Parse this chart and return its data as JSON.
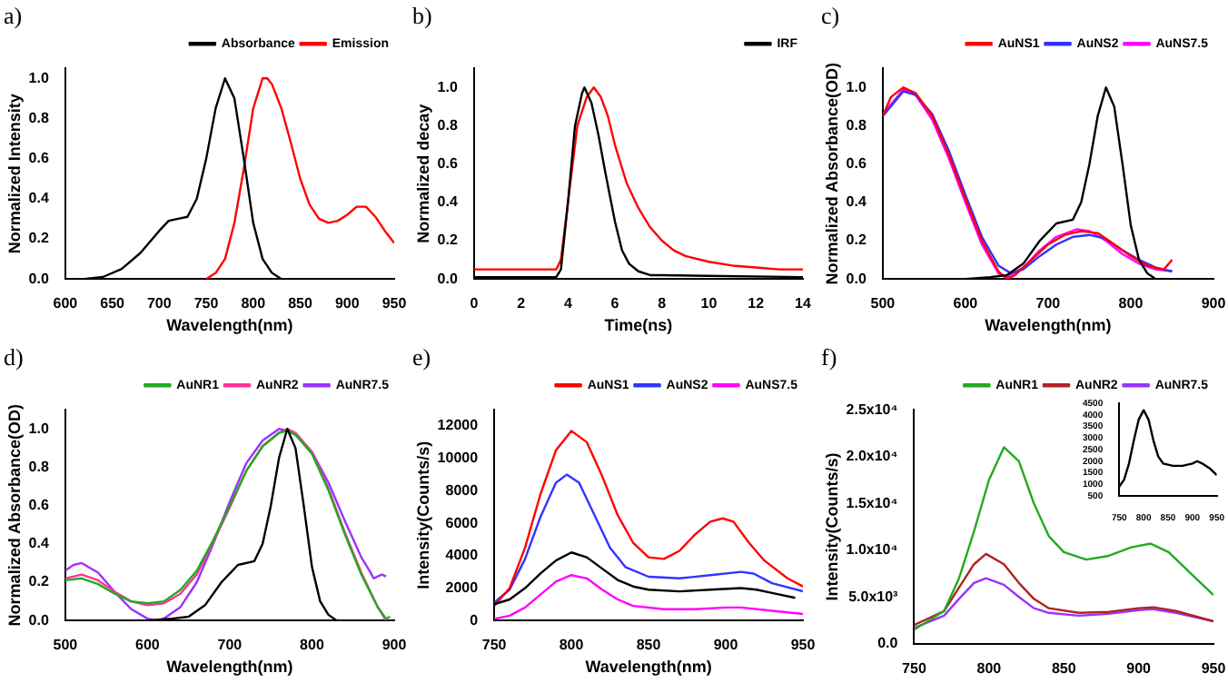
{
  "chart_data": [
    {
      "type": "line",
      "title": "a)",
      "xlabel": "Wavelength(nm)",
      "ylabel": "Normalized Intensity",
      "xlim": [
        600,
        950
      ],
      "xticks": [
        600,
        650,
        700,
        750,
        800,
        850,
        900,
        950
      ],
      "ylim": [
        0,
        1.05
      ],
      "yticks": [
        {
          "value": 0,
          "label": "0.0"
        },
        0.2,
        0.4,
        0.6,
        0.8,
        {
          "value": 1,
          "label": "1.0"
        }
      ],
      "legend": "top right",
      "series": [
        {
          "name": "Absorbance",
          "color": "#000000",
          "x": [
            620,
            640,
            660,
            680,
            700,
            710,
            720,
            730,
            740,
            750,
            760,
            770,
            780,
            790,
            800,
            810,
            820,
            830
          ],
          "values": [
            0,
            0.01,
            0.05,
            0.13,
            0.24,
            0.29,
            0.3,
            0.31,
            0.4,
            0.6,
            0.85,
            1.0,
            0.9,
            0.6,
            0.28,
            0.1,
            0.03,
            0
          ]
        },
        {
          "name": "Emission",
          "color": "#ff0000",
          "x": [
            750,
            760,
            770,
            780,
            790,
            800,
            810,
            815,
            820,
            830,
            840,
            850,
            860,
            870,
            880,
            890,
            900,
            910,
            920,
            930,
            940,
            950
          ],
          "values": [
            0,
            0.03,
            0.1,
            0.28,
            0.55,
            0.85,
            1.0,
            1.0,
            0.97,
            0.85,
            0.68,
            0.5,
            0.37,
            0.3,
            0.28,
            0.29,
            0.32,
            0.36,
            0.36,
            0.31,
            0.24,
            0.18
          ]
        }
      ]
    },
    {
      "type": "line",
      "title": "b)",
      "xlabel": "Time(ns)",
      "ylabel": "Normalized decay",
      "xlim": [
        0,
        14
      ],
      "xticks": [
        0,
        2,
        4,
        6,
        8,
        10,
        12,
        14
      ],
      "ylim": [
        0,
        1.1
      ],
      "yticks": [
        {
          "value": 0,
          "label": "0.0"
        },
        0.2,
        0.4,
        0.6,
        0.8,
        {
          "value": 1,
          "label": "1.0"
        }
      ],
      "legend": "top right",
      "series": [
        {
          "name": "IRF",
          "color": "#000000",
          "x": [
            0,
            3.5,
            3.7,
            4.0,
            4.3,
            4.6,
            4.7,
            5.0,
            5.3,
            5.6,
            6.0,
            6.3,
            6.6,
            7,
            7.5,
            8,
            14
          ],
          "values": [
            0.01,
            0.01,
            0.05,
            0.4,
            0.8,
            0.97,
            1.0,
            0.92,
            0.75,
            0.55,
            0.3,
            0.15,
            0.08,
            0.04,
            0.02,
            0.02,
            0.01
          ]
        },
        {
          "color": "#ff0000",
          "x": [
            0,
            3.5,
            3.7,
            4.0,
            4.4,
            4.8,
            5.1,
            5.4,
            5.7,
            6.0,
            6.5,
            7,
            7.5,
            8,
            8.5,
            9,
            10,
            11,
            12,
            13,
            14
          ],
          "values": [
            0.05,
            0.05,
            0.1,
            0.4,
            0.8,
            0.95,
            1.0,
            0.95,
            0.85,
            0.7,
            0.5,
            0.37,
            0.27,
            0.2,
            0.15,
            0.12,
            0.09,
            0.07,
            0.06,
            0.05,
            0.05
          ]
        }
      ]
    },
    {
      "type": "line",
      "title": "c)",
      "xlabel": "Wavelength(nm)",
      "ylabel": "Normalized Absorbance(OD)",
      "xlim": [
        500,
        900
      ],
      "xticks": [
        500,
        600,
        700,
        800,
        900
      ],
      "ylim": [
        0,
        1.1
      ],
      "yticks": [
        {
          "value": 0,
          "label": "0.0"
        },
        0.2,
        0.4,
        0.6,
        0.8,
        {
          "value": 1,
          "label": "1.0"
        }
      ],
      "legend": "top right",
      "series": [
        {
          "color": "#000000",
          "x": [
            600,
            630,
            650,
            670,
            690,
            710,
            730,
            740,
            750,
            760,
            770,
            780,
            790,
            800,
            810,
            820,
            830
          ],
          "values": [
            0,
            0.01,
            0.02,
            0.08,
            0.2,
            0.29,
            0.31,
            0.4,
            0.6,
            0.85,
            1.0,
            0.9,
            0.6,
            0.28,
            0.1,
            0.03,
            0
          ]
        },
        {
          "name": "AuNS1",
          "color": "#ff0000",
          "x": [
            500,
            510,
            525,
            540,
            560,
            580,
            600,
            620,
            640,
            650,
            660,
            680,
            700,
            720,
            740,
            760,
            780,
            800,
            820,
            840,
            850
          ],
          "values": [
            0.85,
            0.95,
            1.0,
            0.97,
            0.85,
            0.65,
            0.42,
            0.2,
            0.04,
            0,
            0.02,
            0.1,
            0.18,
            0.23,
            0.25,
            0.24,
            0.18,
            0.12,
            0.07,
            0.05,
            0.1
          ]
        },
        {
          "name": "AuNS2",
          "color": "#3333ff",
          "x": [
            500,
            525,
            540,
            560,
            580,
            600,
            620,
            640,
            655,
            670,
            690,
            710,
            730,
            750,
            770,
            790,
            810,
            830,
            850
          ],
          "values": [
            0.85,
            0.98,
            0.96,
            0.86,
            0.67,
            0.44,
            0.22,
            0.07,
            0.03,
            0.05,
            0.12,
            0.18,
            0.22,
            0.23,
            0.21,
            0.15,
            0.1,
            0.06,
            0.04
          ]
        },
        {
          "name": "AuNS7.5",
          "color": "#ff00ff",
          "x": [
            500,
            525,
            540,
            560,
            580,
            600,
            620,
            640,
            650,
            670,
            690,
            710,
            735,
            750,
            770,
            790,
            810,
            830,
            850
          ],
          "values": [
            0.86,
            0.99,
            0.96,
            0.83,
            0.63,
            0.4,
            0.18,
            0.03,
            0.01,
            0.06,
            0.15,
            0.22,
            0.26,
            0.25,
            0.2,
            0.13,
            0.08,
            0.05,
            0.04
          ]
        }
      ]
    },
    {
      "type": "line",
      "title": "d)",
      "xlabel": "Wavelength(nm)",
      "ylabel": "Normalized Absorbance(OD)",
      "xlim": [
        500,
        900
      ],
      "xticks": [
        500,
        600,
        700,
        800,
        900
      ],
      "ylim": [
        0,
        1.1
      ],
      "yticks": [
        {
          "value": 0,
          "label": "0.0"
        },
        0.2,
        0.4,
        0.6,
        0.8,
        {
          "value": 1,
          "label": "1.0"
        }
      ],
      "legend": "top right",
      "series": [
        {
          "color": "#000000",
          "x": [
            600,
            630,
            650,
            670,
            690,
            710,
            730,
            740,
            750,
            760,
            770,
            780,
            790,
            800,
            810,
            820,
            830
          ],
          "values": [
            0,
            0.01,
            0.02,
            0.08,
            0.2,
            0.29,
            0.31,
            0.4,
            0.6,
            0.85,
            1.0,
            0.9,
            0.6,
            0.28,
            0.1,
            0.03,
            0
          ]
        },
        {
          "name": "AuNR1",
          "color": "#22aa22",
          "x": [
            500,
            520,
            540,
            560,
            580,
            600,
            620,
            640,
            660,
            680,
            700,
            720,
            740,
            760,
            770,
            780,
            800,
            820,
            840,
            860,
            880,
            890,
            895
          ],
          "values": [
            0.21,
            0.22,
            0.19,
            0.14,
            0.1,
            0.09,
            0.1,
            0.16,
            0.26,
            0.42,
            0.6,
            0.78,
            0.91,
            0.98,
            0.99,
            0.97,
            0.87,
            0.68,
            0.45,
            0.24,
            0.07,
            0.01,
            0.02
          ]
        },
        {
          "name": "AuNR2",
          "color": "#ff3399",
          "x": [
            500,
            520,
            540,
            560,
            580,
            600,
            620,
            640,
            660,
            680,
            700,
            720,
            740,
            760,
            770,
            780,
            800,
            820,
            840,
            860,
            880,
            890
          ],
          "values": [
            0.22,
            0.24,
            0.21,
            0.15,
            0.1,
            0.08,
            0.09,
            0.14,
            0.24,
            0.41,
            0.59,
            0.78,
            0.91,
            0.98,
            1.0,
            0.98,
            0.88,
            0.69,
            0.46,
            0.25,
            0.07,
            0
          ]
        },
        {
          "name": "AuNR7.5",
          "color": "#9933ff",
          "x": [
            500,
            510,
            520,
            540,
            560,
            580,
            600,
            610,
            620,
            640,
            660,
            680,
            700,
            720,
            740,
            760,
            770,
            780,
            800,
            820,
            840,
            860,
            870,
            875,
            880,
            885,
            890
          ],
          "values": [
            0.26,
            0.29,
            0.3,
            0.25,
            0.15,
            0.06,
            0.01,
            0,
            0.01,
            0.07,
            0.2,
            0.4,
            0.62,
            0.82,
            0.94,
            1.0,
            0.99,
            0.97,
            0.88,
            0.72,
            0.52,
            0.33,
            0.26,
            0.22,
            0.23,
            0.24,
            0.23
          ]
        }
      ]
    },
    {
      "type": "line",
      "title": "e)",
      "xlabel": "Wavelength(nm)",
      "ylabel": "Intensity(Counts/s)",
      "xlim": [
        750,
        950
      ],
      "xticks": [
        750,
        800,
        850,
        900,
        950
      ],
      "ylim": [
        0,
        13000
      ],
      "yticks": [
        0,
        2000,
        4000,
        6000,
        8000,
        10000,
        12000
      ],
      "legend": "top right",
      "series": [
        {
          "color": "#000000",
          "x": [
            750,
            760,
            770,
            780,
            790,
            800,
            810,
            820,
            830,
            840,
            850,
            870,
            890,
            910,
            920,
            930,
            945
          ],
          "values": [
            1000,
            1300,
            2000,
            2900,
            3700,
            4200,
            3900,
            3200,
            2500,
            2100,
            1900,
            1800,
            1900,
            2000,
            1900,
            1700,
            1400
          ]
        },
        {
          "name": "AuNS1",
          "color": "#ff0000",
          "x": [
            750,
            760,
            770,
            780,
            790,
            800,
            810,
            820,
            830,
            840,
            850,
            860,
            870,
            880,
            890,
            898,
            905,
            915,
            925,
            940,
            950
          ],
          "values": [
            900,
            2000,
            4500,
            7800,
            10500,
            11700,
            11000,
            8900,
            6500,
            4800,
            3900,
            3800,
            4300,
            5300,
            6100,
            6300,
            6100,
            4800,
            3700,
            2600,
            2100
          ]
        },
        {
          "name": "AuNS2",
          "color": "#3333ff",
          "x": [
            750,
            760,
            770,
            780,
            790,
            797,
            805,
            815,
            825,
            835,
            850,
            870,
            890,
            910,
            918,
            930,
            950
          ],
          "values": [
            1100,
            1900,
            3800,
            6400,
            8500,
            9000,
            8500,
            6500,
            4500,
            3300,
            2700,
            2600,
            2800,
            3000,
            2900,
            2300,
            1800
          ]
        },
        {
          "name": "AuNS7.5",
          "color": "#ff00ff",
          "x": [
            750,
            760,
            770,
            780,
            790,
            800,
            810,
            820,
            830,
            840,
            860,
            880,
            900,
            910,
            930,
            950
          ],
          "values": [
            100,
            300,
            800,
            1600,
            2400,
            2800,
            2600,
            1900,
            1300,
            900,
            700,
            700,
            800,
            800,
            600,
            400
          ]
        }
      ]
    },
    {
      "type": "line",
      "title": "f)",
      "ylabel": "Intensity(Counts/s)",
      "xlim": [
        750,
        950
      ],
      "xticks": [
        750,
        800,
        850,
        900,
        950
      ],
      "ylim": [
        0,
        25000
      ],
      "yticks": [
        {
          "value": 0,
          "label": "0.0"
        },
        {
          "value": 5000,
          "label": "5.0x10³"
        },
        {
          "value": 10000,
          "label": "1.0x10⁴"
        },
        {
          "value": 15000,
          "label": "1.5x10⁴"
        },
        {
          "value": 20000,
          "label": "2.0x10⁴"
        },
        {
          "value": 25000,
          "label": "2.5x10⁴"
        }
      ],
      "legend": "top right",
      "series": [
        {
          "name": "AuNR1",
          "color": "#22aa22",
          "x": [
            750,
            770,
            780,
            790,
            800,
            810,
            820,
            830,
            840,
            850,
            865,
            880,
            895,
            908,
            920,
            935,
            950
          ],
          "values": [
            1500,
            3500,
            7000,
            12000,
            17500,
            21000,
            19500,
            15000,
            11500,
            9800,
            9000,
            9400,
            10300,
            10700,
            9800,
            7500,
            5200
          ]
        },
        {
          "name": "AuNR2",
          "color": "#b22222",
          "x": [
            750,
            770,
            780,
            790,
            798,
            810,
            820,
            830,
            840,
            860,
            880,
            900,
            910,
            925,
            950
          ],
          "values": [
            2000,
            3500,
            6000,
            8500,
            9600,
            8500,
            6500,
            4800,
            3800,
            3300,
            3400,
            3800,
            3900,
            3500,
            2400
          ]
        },
        {
          "name": "AuNR7.5",
          "color": "#9933ff",
          "x": [
            750,
            770,
            780,
            790,
            798,
            810,
            820,
            830,
            840,
            860,
            880,
            900,
            910,
            925,
            950
          ],
          "values": [
            1700,
            3000,
            4800,
            6500,
            7000,
            6300,
            5000,
            3800,
            3300,
            3000,
            3200,
            3600,
            3700,
            3300,
            2400
          ]
        }
      ]
    },
    {
      "type": "line",
      "xlim": [
        750,
        950
      ],
      "xticks": [
        750,
        800,
        850,
        900,
        950
      ],
      "ylim": [
        500,
        4500
      ],
      "yticks": [
        500,
        1000,
        1500,
        2000,
        2500,
        3000,
        3500,
        4000,
        4500
      ],
      "series": [
        {
          "color": "#000000",
          "x": [
            750,
            760,
            770,
            780,
            790,
            800,
            810,
            820,
            830,
            840,
            860,
            880,
            900,
            910,
            920,
            935,
            950
          ],
          "values": [
            900,
            1200,
            1900,
            2900,
            3800,
            4200,
            3800,
            2900,
            2200,
            1900,
            1800,
            1800,
            1900,
            2000,
            1900,
            1700,
            1400
          ]
        }
      ]
    }
  ]
}
